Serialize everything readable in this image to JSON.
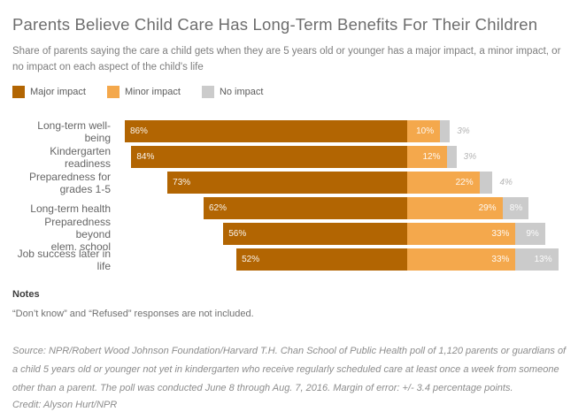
{
  "header": {
    "title": "Parents Believe Child Care Has Long-Term Benefits For Their Children",
    "subtitle": "Share of parents saying the care a child gets when they are 5 years old or younger has a major impact, a minor impact, or no impact on each aspect of the child's life"
  },
  "legend": {
    "items": [
      {
        "label": "Major impact",
        "color": "#b26502"
      },
      {
        "label": "Minor impact",
        "color": "#f4a84c"
      },
      {
        "label": "No impact",
        "color": "#cbcbcb"
      }
    ]
  },
  "chart_data": {
    "type": "bar",
    "orientation": "horizontal-stacked",
    "note": "bars anchored on the boundary between Major and Minor segments",
    "title": "Parents Believe Child Care Has Long-Term Benefits For Their Children",
    "categories": [
      "Long-term well-being",
      "Kindergarten readiness",
      "Preparedness for\ngrades 1-5",
      "Long-term health",
      "Preparedness beyond\nelem. school",
      "Job success later in life"
    ],
    "series": [
      {
        "name": "Major impact",
        "color": "#b26502",
        "values": [
          86,
          84,
          73,
          62,
          56,
          52
        ]
      },
      {
        "name": "Minor impact",
        "color": "#f4a84c",
        "values": [
          10,
          12,
          22,
          29,
          33,
          33
        ]
      },
      {
        "name": "No impact",
        "color": "#cbcbcb",
        "values": [
          3,
          3,
          4,
          8,
          9,
          13
        ]
      }
    ],
    "value_suffix": "%",
    "xlim": [
      0,
      100
    ],
    "grid": false,
    "legend_position": "top"
  },
  "notes": {
    "heading": "Notes",
    "note": "“Don’t know” and “Refused” responses are not included.",
    "source": "Source: NPR/Robert Wood Johnson Foundation/Harvard T.H. Chan School of Public Health poll of 1,120 parents or guardians of a child 5 years old or younger not yet in kindergarten who receive regularly scheduled care at least once a week from someone other than a parent. The poll was conducted June 8 through Aug. 7, 2016. Margin of error: +/- 3.4 percentage points.",
    "credit": "Credit: Alyson Hurt/NPR"
  }
}
